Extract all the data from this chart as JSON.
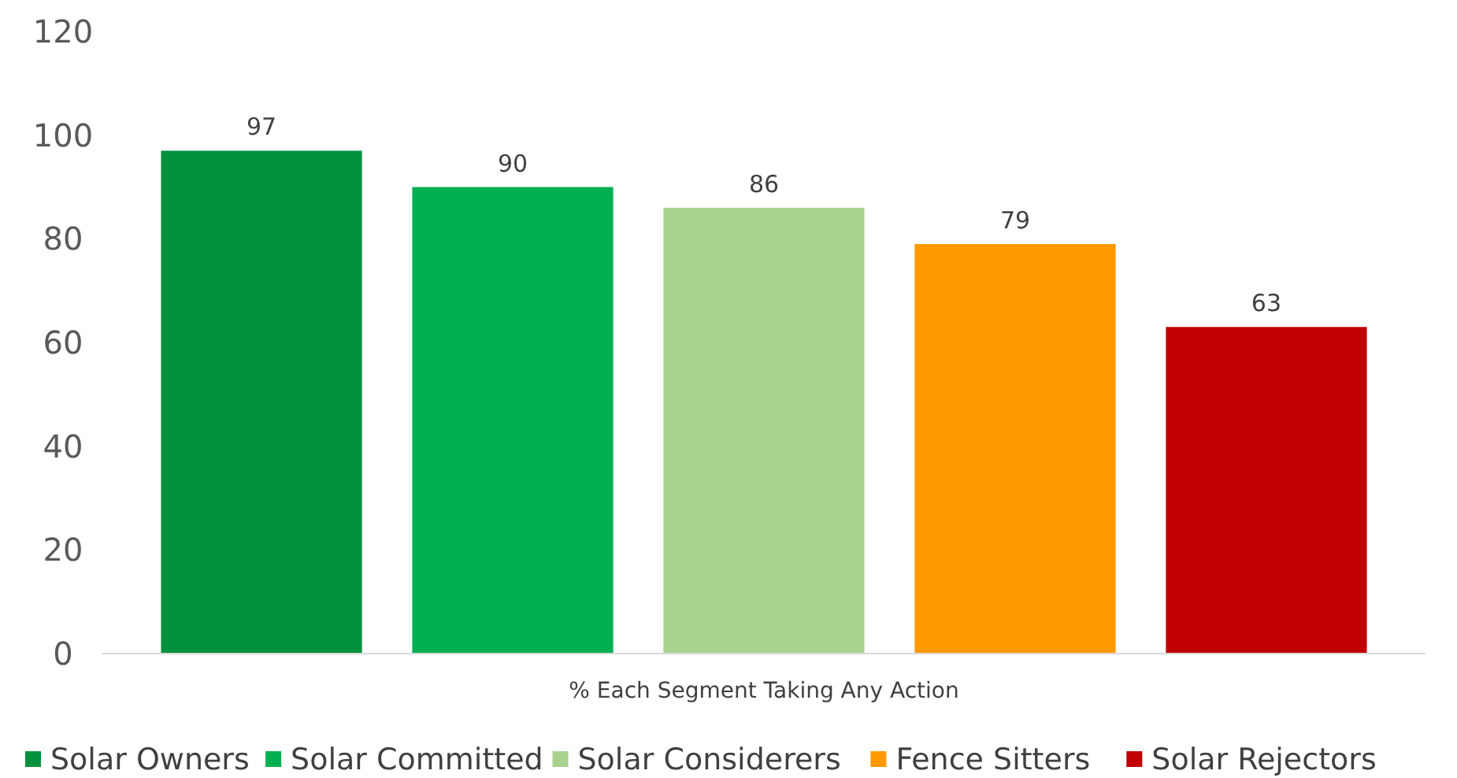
{
  "chart_data": {
    "type": "bar",
    "categories": [
      "% Each Segment Taking Any Action"
    ],
    "series": [
      {
        "name": "Solar Owners",
        "color": "#00913f",
        "values": [
          97
        ]
      },
      {
        "name": "Solar Committed",
        "color": "#00b050",
        "values": [
          90
        ]
      },
      {
        "name": "Solar Considerers",
        "color": "#a9d18e",
        "values": [
          86
        ]
      },
      {
        "name": "Fence Sitters",
        "color": "#ff9900",
        "values": [
          79
        ]
      },
      {
        "name": "Solar Rejectors",
        "color": "#c00000",
        "values": [
          63
        ]
      }
    ],
    "ylim": [
      0,
      120
    ],
    "yticks": [
      0,
      20,
      40,
      60,
      80,
      100,
      120
    ],
    "data_labels": true,
    "legend": "bottom",
    "grid": false
  }
}
